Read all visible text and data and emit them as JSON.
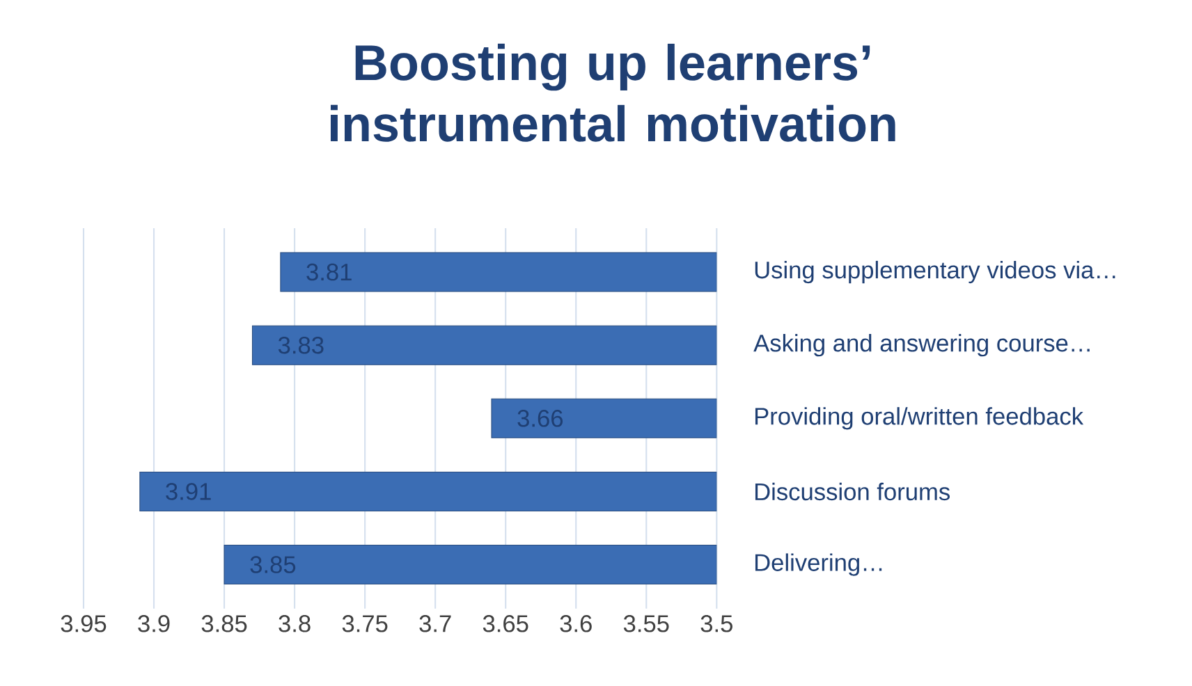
{
  "chart_data": {
    "type": "bar",
    "orientation": "horizontal",
    "title": "Boosting up learners’ instrumental motivation",
    "categories": [
      "Using supplementary videos via…",
      "Asking and answering course…",
      "Providing oral/written feedback",
      "Discussion forums",
      "Delivering…"
    ],
    "values": [
      3.81,
      3.83,
      3.66,
      3.91,
      3.85
    ],
    "color": "#3b6db4",
    "xlim": [
      3.95,
      3.5
    ],
    "xticks": [
      3.95,
      3.9,
      3.85,
      3.8,
      3.75,
      3.7,
      3.65,
      3.6,
      3.55,
      3.5
    ],
    "grid": "x",
    "data_labels": true
  }
}
